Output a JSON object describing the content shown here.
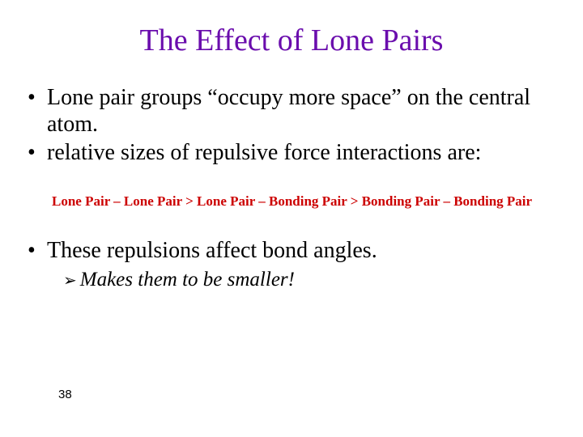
{
  "title": "The Effect of Lone Pairs",
  "title_color": "#6a0dad",
  "bullets": {
    "b1": "Lone pair groups “occupy more space” on the central atom.",
    "b2": "relative sizes of repulsive force interactions are:",
    "b3": "These repulsions affect bond angles."
  },
  "repulsion_line": "Lone Pair – Lone Pair > Lone Pair – Bonding Pair > Bonding Pair – Bonding Pair",
  "repulsion_color": "#cc0000",
  "sub_bullet": "Makes them to be smaller!",
  "sub_bullet_arrow": "➢",
  "page_number": "38",
  "background_color": "#ffffff",
  "text_color": "#000000"
}
